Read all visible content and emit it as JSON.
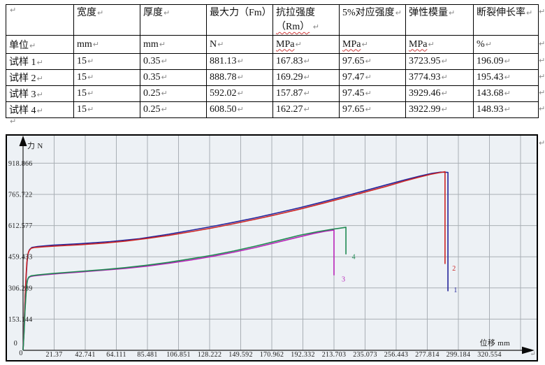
{
  "marks": {
    "pilcrow": "↵"
  },
  "colors": {
    "curve1": "#24249a",
    "curve2": "#cc2424",
    "curve3": "#b824b8",
    "curve4": "#1f8a52",
    "grid": "#a9afb5",
    "plot_bg": "#edf1f5",
    "axis": "#3c3c3c",
    "arrow": "#0a0a0a",
    "tick_text": "#1c1c1c",
    "border": "#000000"
  },
  "table": {
    "header": [
      {
        "text": ""
      },
      {
        "text": "宽度"
      },
      {
        "text": "厚度"
      },
      {
        "text": "最大力（Fm）"
      },
      {
        "text": "抗拉强度",
        "text2": "（Rm）",
        "wavy2": true
      },
      {
        "text": "5%对应强度"
      },
      {
        "text": "弹性模量"
      },
      {
        "text": "断裂伸长率"
      }
    ],
    "rows": [
      {
        "cells": [
          {
            "text": "单位"
          },
          {
            "text": "mm"
          },
          {
            "text": "mm"
          },
          {
            "text": "N"
          },
          {
            "text": "MPa",
            "wavy": true
          },
          {
            "text": "MPa",
            "wavy": true
          },
          {
            "text": "MPa",
            "wavy": true
          },
          {
            "text": "%"
          }
        ]
      },
      {
        "cells": [
          {
            "text": "试样 1"
          },
          {
            "text": "15"
          },
          {
            "text": "0.35"
          },
          {
            "text": "881.13"
          },
          {
            "text": "167.83"
          },
          {
            "text": "97.65"
          },
          {
            "text": "3723.95"
          },
          {
            "text": "196.09"
          }
        ]
      },
      {
        "cells": [
          {
            "text": "试样 2"
          },
          {
            "text": "15"
          },
          {
            "text": "0.35"
          },
          {
            "text": "888.78"
          },
          {
            "text": "169.29"
          },
          {
            "text": "97.47"
          },
          {
            "text": "3774.93"
          },
          {
            "text": "195.43"
          }
        ]
      },
      {
        "cells": [
          {
            "text": "试样 3"
          },
          {
            "text": "15"
          },
          {
            "text": "0.25"
          },
          {
            "text": "592.02"
          },
          {
            "text": "157.87"
          },
          {
            "text": "97.45"
          },
          {
            "text": "3929.46"
          },
          {
            "text": "143.68"
          }
        ]
      },
      {
        "cells": [
          {
            "text": "试样 4"
          },
          {
            "text": "15"
          },
          {
            "text": "0.25"
          },
          {
            "text": "608.50"
          },
          {
            "text": "162.27"
          },
          {
            "text": "97.65"
          },
          {
            "text": "3922.99"
          },
          {
            "text": "148.93"
          }
        ]
      }
    ]
  },
  "chart_data": {
    "type": "line",
    "title": "",
    "xlabel": "位移 mm",
    "ylabel": "力 N",
    "origin_label": "0",
    "x_range": [
      0,
      354
    ],
    "y_range": [
      0,
      1060
    ],
    "grid": true,
    "legend_position": "curve-end-labels",
    "x_tick_values": [
      21.37,
      42.741,
      64.111,
      85.481,
      106.851,
      128.222,
      149.592,
      170.962,
      192.332,
      213.703,
      235.073,
      256.443,
      277.814,
      299.184,
      320.554
    ],
    "x_tick_labels": [
      "21.37",
      "42.741",
      "64.111",
      "85.481",
      "106.851",
      "128.222",
      "149.592",
      "170.962",
      "192.332",
      "213.703",
      "235.073",
      "256.443",
      "277.814",
      "299.184",
      "320.554"
    ],
    "y_tick_values": [
      153.144,
      306.289,
      459.433,
      612.577,
      765.722,
      918.866
    ],
    "y_tick_labels": [
      "153.144",
      "306.289",
      "459.433",
      "612.577",
      "765.722",
      "918.866"
    ],
    "series": [
      {
        "name": "1",
        "color_key": "curve1",
        "points": [
          [
            0,
            0
          ],
          [
            0.8,
            130
          ],
          [
            1.5,
            270
          ],
          [
            2.2,
            370
          ],
          [
            2.8,
            435
          ],
          [
            3.5,
            477
          ],
          [
            4.5,
            495
          ],
          [
            6,
            505
          ],
          [
            10,
            510
          ],
          [
            20,
            516
          ],
          [
            40,
            524
          ],
          [
            60,
            534
          ],
          [
            80,
            548
          ],
          [
            100,
            570
          ],
          [
            115,
            589
          ],
          [
            130,
            608
          ],
          [
            145,
            629
          ],
          [
            160,
            651
          ],
          [
            175,
            675
          ],
          [
            190,
            700
          ],
          [
            205,
            727
          ],
          [
            220,
            755
          ],
          [
            235,
            784
          ],
          [
            250,
            813
          ],
          [
            263,
            838
          ],
          [
            273,
            856
          ],
          [
            281,
            869
          ],
          [
            287,
            875
          ],
          [
            292,
            874
          ]
        ],
        "drop_to": 290,
        "label_at": [
          296,
          285
        ]
      },
      {
        "name": "2",
        "color_key": "curve2",
        "points": [
          [
            0,
            0
          ],
          [
            0.7,
            120
          ],
          [
            1.4,
            260
          ],
          [
            2,
            360
          ],
          [
            2.6,
            430
          ],
          [
            3.2,
            468
          ],
          [
            4,
            488
          ],
          [
            5.5,
            501
          ],
          [
            8,
            505
          ],
          [
            15,
            509
          ],
          [
            25,
            513
          ],
          [
            40,
            519
          ],
          [
            55,
            526
          ],
          [
            70,
            536
          ],
          [
            85,
            549
          ],
          [
            100,
            564
          ],
          [
            115,
            582
          ],
          [
            130,
            601
          ],
          [
            145,
            622
          ],
          [
            160,
            644
          ],
          [
            175,
            668
          ],
          [
            190,
            693
          ],
          [
            205,
            720
          ],
          [
            220,
            748
          ],
          [
            235,
            777
          ],
          [
            250,
            806
          ],
          [
            262,
            831
          ],
          [
            272,
            850
          ],
          [
            280,
            864
          ],
          [
            286,
            872
          ],
          [
            290,
            877
          ]
        ],
        "drop_to": 424,
        "label_at": [
          295,
          392
        ]
      },
      {
        "name": "3",
        "color_key": "curve3",
        "points": [
          [
            0,
            0
          ],
          [
            0.6,
            80
          ],
          [
            1.2,
            180
          ],
          [
            1.8,
            260
          ],
          [
            2.4,
            315
          ],
          [
            3,
            344
          ],
          [
            3.8,
            356
          ],
          [
            5,
            362
          ],
          [
            8,
            366
          ],
          [
            15,
            371
          ],
          [
            25,
            377
          ],
          [
            40,
            385
          ],
          [
            55,
            393
          ],
          [
            70,
            402
          ],
          [
            85,
            413
          ],
          [
            100,
            427
          ],
          [
            115,
            443
          ],
          [
            130,
            461
          ],
          [
            145,
            482
          ],
          [
            160,
            505
          ],
          [
            175,
            531
          ],
          [
            188,
            554
          ],
          [
            200,
            574
          ],
          [
            208,
            585
          ],
          [
            213.7,
            591
          ]
        ],
        "drop_to": 368,
        "label_at": [
          219,
          338
        ]
      },
      {
        "name": "4",
        "color_key": "curve4",
        "points": [
          [
            0,
            0
          ],
          [
            0.7,
            90
          ],
          [
            1.3,
            190
          ],
          [
            2,
            275
          ],
          [
            2.6,
            325
          ],
          [
            3.2,
            350
          ],
          [
            4,
            360
          ],
          [
            5.5,
            366
          ],
          [
            10,
            370
          ],
          [
            20,
            377
          ],
          [
            40,
            388
          ],
          [
            55,
            396
          ],
          [
            70,
            406
          ],
          [
            85,
            418
          ],
          [
            100,
            432
          ],
          [
            115,
            449
          ],
          [
            130,
            467
          ],
          [
            145,
            488
          ],
          [
            160,
            512
          ],
          [
            175,
            538
          ],
          [
            190,
            565
          ],
          [
            202,
            582
          ],
          [
            212,
            594
          ],
          [
            217,
            599
          ],
          [
            221.9,
            604
          ]
        ],
        "drop_to": 471,
        "label_at": [
          226,
          448
        ]
      }
    ]
  }
}
